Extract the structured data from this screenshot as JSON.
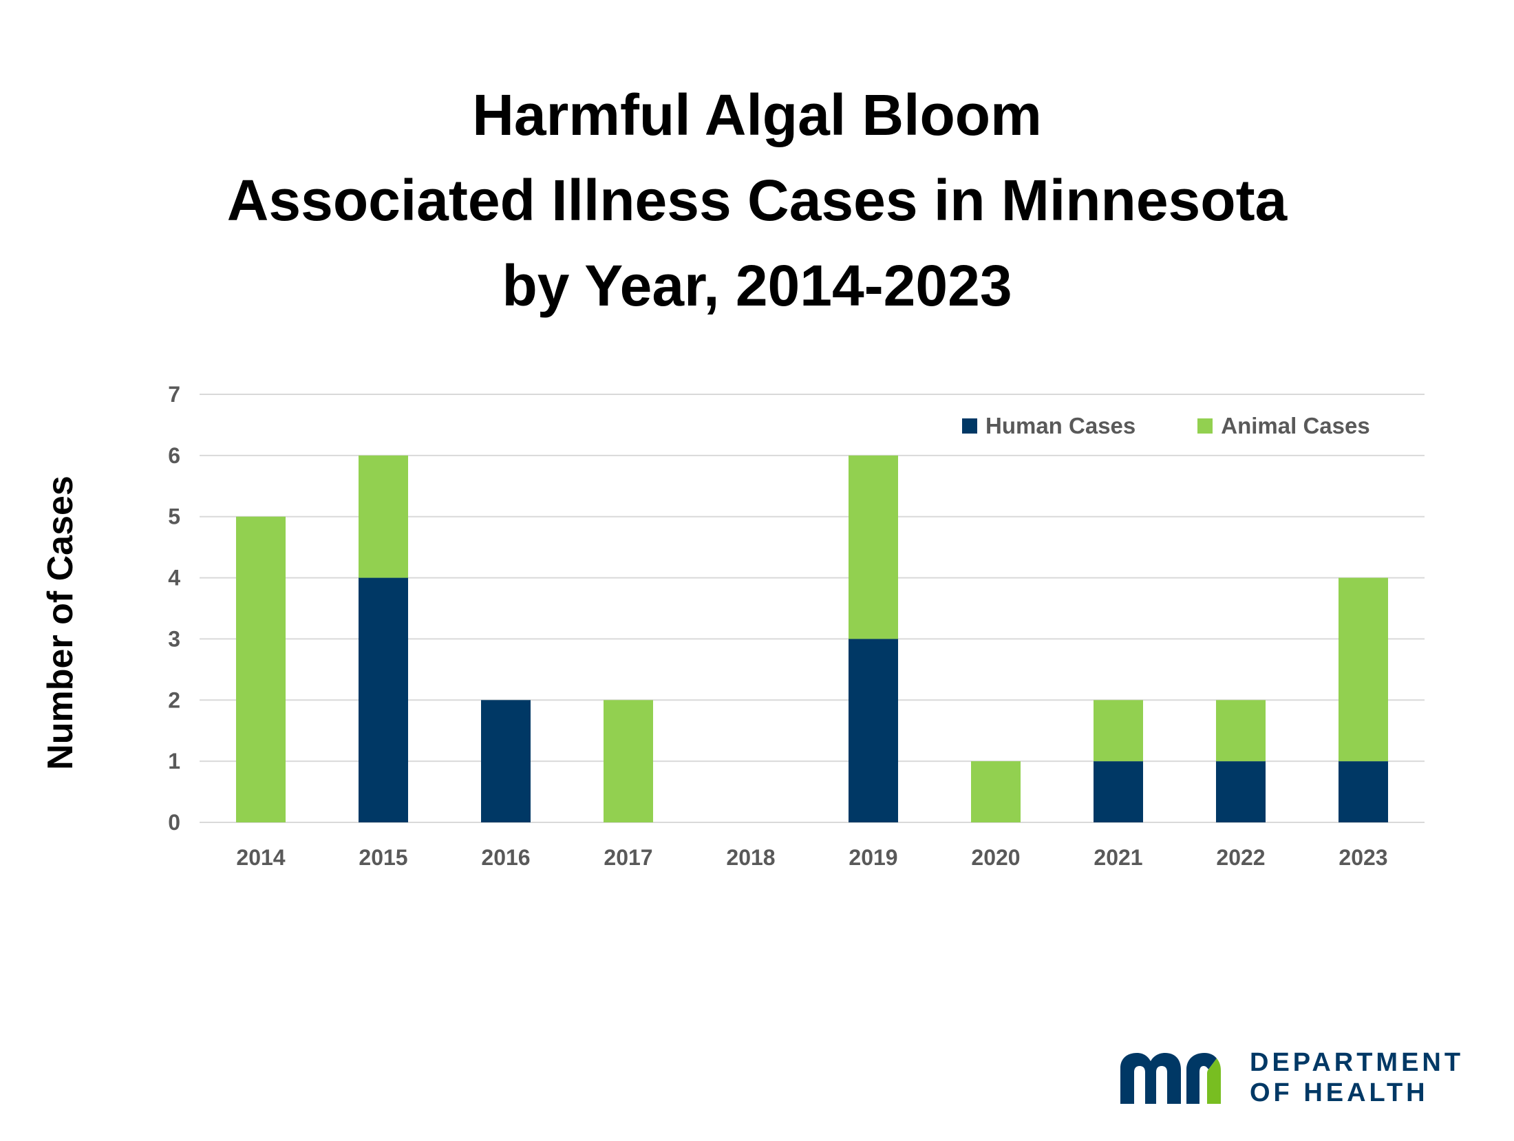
{
  "title_lines": [
    "Harmful Algal Bloom",
    "Associated Illness Cases in Minnesota",
    "by Year, 2014-2023"
  ],
  "colors": {
    "human": "#003865",
    "animal": "#92D050",
    "grid": "#D9D9D9",
    "tick_text": "#595959",
    "logo_blue": "#003865",
    "logo_green": "#78BE21"
  },
  "chart_data": {
    "type": "bar",
    "stacked": true,
    "categories": [
      "2014",
      "2015",
      "2016",
      "2017",
      "2018",
      "2019",
      "2020",
      "2021",
      "2022",
      "2023"
    ],
    "series": [
      {
        "name": "Human Cases",
        "values": [
          0,
          4,
          2,
          0,
          0,
          3,
          0,
          1,
          1,
          1
        ]
      },
      {
        "name": "Animal Cases",
        "values": [
          5,
          2,
          0,
          2,
          0,
          3,
          1,
          1,
          1,
          3
        ]
      }
    ],
    "title": "Harmful Algal Bloom Associated Illness Cases in Minnesota by Year, 2014-2023",
    "xlabel": "",
    "ylabel": "Number of Cases",
    "ylim": [
      0,
      7
    ],
    "yticks": [
      "0",
      "1",
      "2",
      "3",
      "4",
      "5",
      "6",
      "7"
    ],
    "grid": true,
    "legend_position": "top-right"
  },
  "logo": {
    "mark_text": "mn",
    "line1": "DEPARTMENT",
    "line2": "OF HEALTH"
  }
}
